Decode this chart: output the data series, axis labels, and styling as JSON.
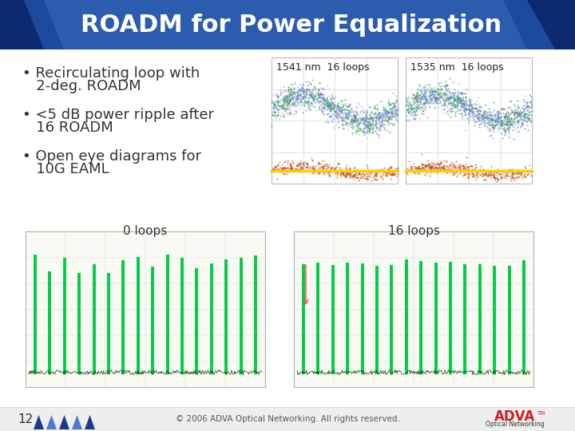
{
  "title": "ROADM for Power Equalization",
  "title_bg_dark": "#0d2a6e",
  "title_bg_mid": "#1e4a9e",
  "title_bg_light": "#3a6fbe",
  "title_text_color": "#ffffff",
  "slide_bg": "#ffffff",
  "bullet_color": "#333333",
  "eye_diagram_labels": [
    "1541 nm  16 loops",
    "1535 nm  16 loops"
  ],
  "bottom_label_left": "0 loops",
  "bottom_label_right": "16 loops",
  "page_number": "12",
  "footer_text": "© 2006 ADVA Optical Networking. All rights reserved.",
  "adva_red": "#cc2222",
  "tri_colors": [
    "#1a3a8c",
    "#4a7ac8",
    "#1a3a8c",
    "#4a7ac8",
    "#1a3a8c"
  ]
}
